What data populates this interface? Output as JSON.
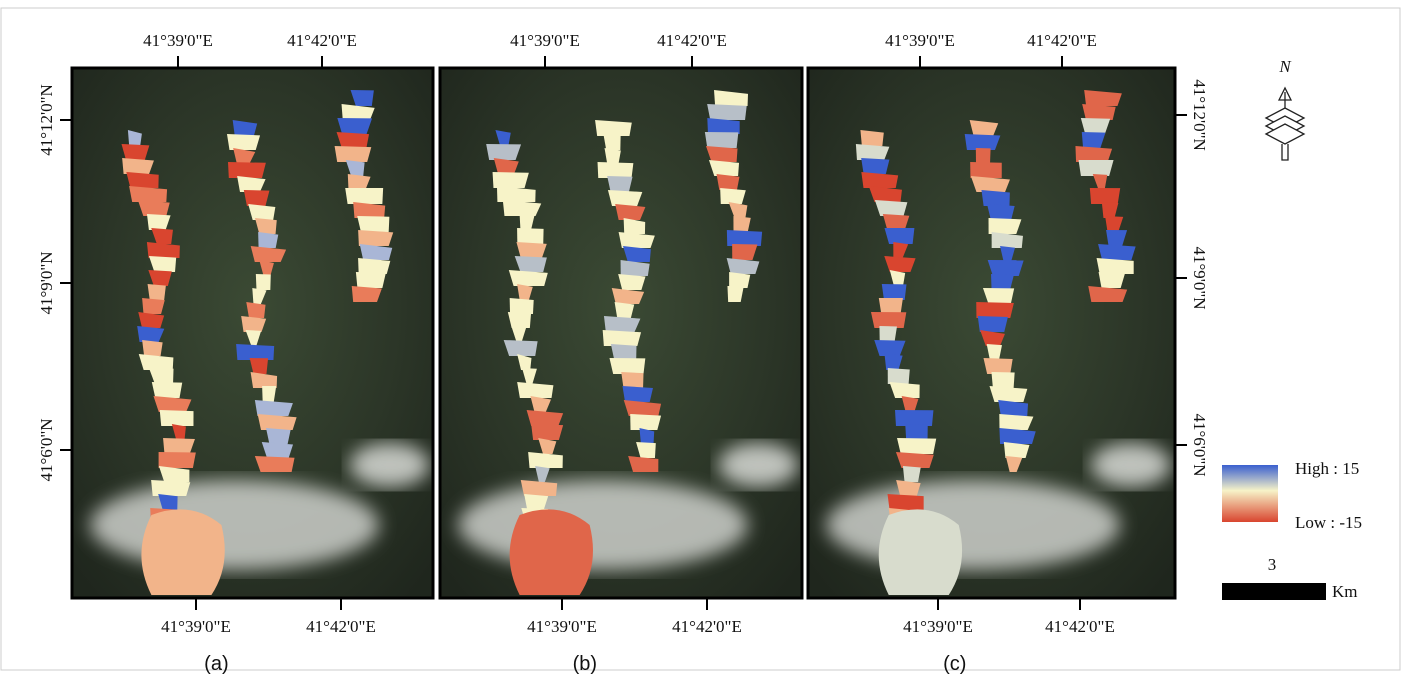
{
  "panels": [
    {
      "label": "(a)",
      "top_ticks": [
        "41°39'0\"E",
        "41°42'0\"E"
      ],
      "bottom_ticks": [
        "41°39'0\"E",
        "41°42'0\"E"
      ]
    },
    {
      "label": "(b)",
      "top_ticks": [
        "41°39'0\"E",
        "41°42'0\"E"
      ],
      "bottom_ticks": [
        "41°39'0\"E",
        "41°42'0\"E"
      ]
    },
    {
      "label": "(c)",
      "top_ticks": [
        "41°39'0\"E",
        "41°42'0\"E"
      ],
      "bottom_ticks": [
        "41°39'0\"E",
        "41°42'0\"E"
      ]
    }
  ],
  "left_ticks": [
    "41°12'0\"N",
    "41°9'0\"N",
    "41°6'0\"N"
  ],
  "right_ticks": [
    "41°12'0\"N",
    "41°9'0\"N",
    "41°6'0\"N"
  ],
  "north": "N",
  "legend": {
    "high": "High : 15",
    "low": "Low : -15"
  },
  "scale": {
    "value": "3",
    "unit": "Km"
  }
}
